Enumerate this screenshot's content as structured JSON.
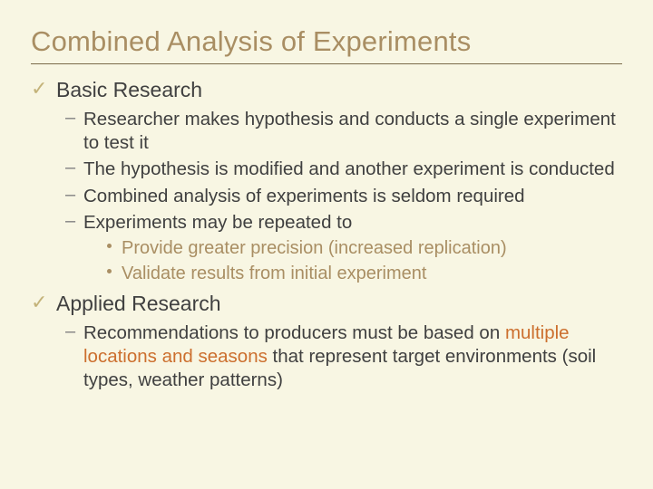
{
  "colors": {
    "background": "#f8f6e3",
    "title": "#a98e63",
    "rule": "#7a6a4a",
    "body_text": "#404040",
    "accent_text": "#a98e63",
    "check": "#c4b37a",
    "highlight": "#cc6f2e"
  },
  "typography": {
    "font_family": "Arial",
    "title_size": 31,
    "l1_size": 23,
    "l2_size": 20.5,
    "l3_size": 20
  },
  "title": "Combined Analysis of Experiments",
  "sections": [
    {
      "label": "Basic Research",
      "items": [
        {
          "text": "Researcher makes hypothesis and conducts a single experiment to test it"
        },
        {
          "text": "The hypothesis is modified and another experiment is conducted"
        },
        {
          "text": "Combined analysis of experiments is seldom required"
        },
        {
          "text": "Experiments may be repeated to",
          "subitems": [
            "Provide greater precision (increased replication)",
            "Validate results from initial experiment"
          ]
        }
      ]
    },
    {
      "label": "Applied Research",
      "items": [
        {
          "text_pre": "Recommendations to producers must be based on ",
          "text_hl": "multiple locations and seasons",
          "text_post": " that represent target environments (soil types, weather patterns)"
        }
      ]
    }
  ]
}
